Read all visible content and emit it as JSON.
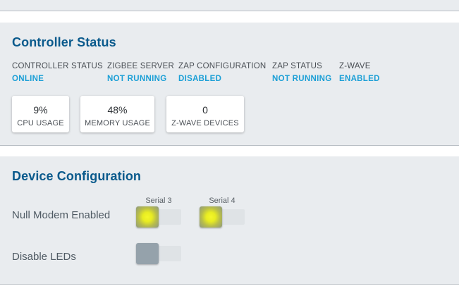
{
  "controller_status": {
    "title": "Controller Status",
    "stats": [
      {
        "label": "CONTROLLER STATUS",
        "value": "ONLINE"
      },
      {
        "label": "ZIGBEE SERVER",
        "value": "NOT RUNNING"
      },
      {
        "label": "ZAP CONFIGURATION",
        "value": "DISABLED"
      },
      {
        "label": "ZAP STATUS",
        "value": "NOT RUNNING"
      },
      {
        "label": "Z-WAVE",
        "value": "ENABLED"
      }
    ],
    "metrics": [
      {
        "value": "9%",
        "label": "CPU USAGE"
      },
      {
        "value": "48%",
        "label": "MEMORY USAGE"
      },
      {
        "value": "0",
        "label": "Z-WAVE DEVICES"
      }
    ]
  },
  "device_configuration": {
    "title": "Device Configuration",
    "columns": [
      "Serial 3",
      "Serial 4"
    ],
    "rows": [
      {
        "label": "Null Modem Enabled",
        "serial3": true,
        "serial4": true
      },
      {
        "label": "Disable LEDs",
        "serial3": false
      }
    ]
  },
  "colors": {
    "title": "#0a5a8c",
    "status_value": "#1b9fd6",
    "toggle_on": "#e8ec22",
    "toggle_off": "#95a2ab"
  }
}
